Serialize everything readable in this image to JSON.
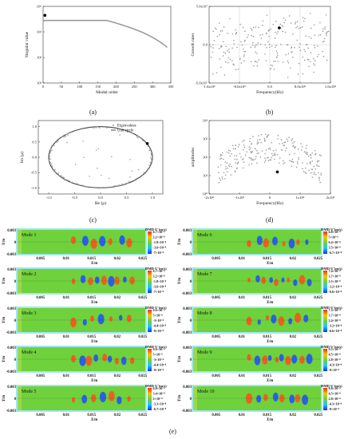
{
  "panel_labels": {
    "a": "(a)",
    "b": "(b)",
    "c": "(c)",
    "d": "(d)",
    "e": "(e)"
  },
  "chart_data": [
    {
      "id": "a",
      "type": "scatter",
      "xlabel": "Modal order",
      "ylabel": "Singular value",
      "x_ticks": [
        "0",
        "50",
        "100",
        "150",
        "200",
        "250",
        "300",
        "350"
      ],
      "y_ticks": [
        "10⁵",
        "10⁴",
        "10³",
        "10²"
      ],
      "x_range": [
        0,
        350
      ],
      "log_y": true,
      "y_range_exp": [
        2,
        5
      ],
      "highlight": {
        "x": 5,
        "y_exp": 4.65
      }
    },
    {
      "id": "b",
      "type": "scatter",
      "xlabel": "Frequency(Hz)",
      "ylabel": "Growth rates",
      "x_ticks": [
        "-1.6x10⁶",
        "-8.0x10⁵",
        "0.0",
        "8.0x10⁵",
        "1.6x10⁶"
      ],
      "y_ticks": [
        "5.0x10⁷",
        "0.0",
        "-5.0x10⁷"
      ],
      "x_range": [
        -1600000,
        1600000
      ],
      "y_range": [
        -50000000,
        50000000
      ],
      "highlight": {
        "x": 250000,
        "y": 22000000
      }
    },
    {
      "id": "c",
      "type": "scatter",
      "xlabel": "Re (μ)",
      "ylabel": "Im (μ)",
      "x_ticks": [
        "-1.0",
        "-0.5",
        "0.0",
        "0.5",
        "1.0"
      ],
      "y_ticks": [
        "1.0",
        "0.5",
        "0.0",
        "-0.5",
        "-1.0"
      ],
      "x_range": [
        -1.2,
        1.2
      ],
      "y_range": [
        -1.2,
        1.2
      ],
      "legend": [
        "Eigenvalues",
        "Unit circle"
      ],
      "legend_position": "top-right",
      "highlight": {
        "x": 0.9,
        "y": 0.45
      }
    },
    {
      "id": "d",
      "type": "scatter",
      "xlabel": "Frequency(Hz)",
      "ylabel": "amplitudes",
      "x_ticks": [
        "-2x10⁶",
        "-1x10⁶",
        "0",
        "1x10⁶",
        "2x10⁶"
      ],
      "y_ticks": [
        "10⁴",
        "10³",
        "10²",
        "10¹",
        "10⁰"
      ],
      "x_range": [
        -2000000,
        2000000
      ],
      "log_y": true,
      "y_range_exp": [
        0,
        4
      ],
      "highlight": {
        "x": 250000,
        "y_exp": 1.2
      }
    }
  ],
  "modes": {
    "x_axis_label": "X/m",
    "y_axis_label": "Y/m",
    "x_ticks": [
      "0.005",
      "0.01",
      "0.015",
      "0.02",
      "0.025"
    ],
    "y_ticks": [
      "0.003",
      "0",
      "-0.003"
    ],
    "colorbar_title": "DMD U'(m/s)",
    "colors": {
      "background": "#6fd13c",
      "positive": "#ff4d1a",
      "negative": "#1f4dff",
      "frame": "#9fe6f0"
    },
    "items": [
      {
        "label": "Mode 1",
        "colorbar": [
          "6.7×10⁻⁸",
          "2.2×10⁻⁸",
          "-1.8×10⁻⁸",
          "-3.6×10⁻⁸",
          "-7×10⁻⁸"
        ]
      },
      {
        "label": "Mode 6",
        "colorbar": [
          "6.8×10⁻⁸",
          "5×10⁻⁸",
          "6.4×10⁻⁸",
          "3.5×10⁻⁸",
          "-6.7×10⁻⁸"
        ]
      },
      {
        "label": "Mode 2",
        "colorbar": [
          "6.7×10⁻⁸",
          "3.2×10⁻⁸",
          "-1.8×10⁻⁸",
          "-3.6×10⁻⁸",
          "-7×10⁻⁸"
        ]
      },
      {
        "label": "Mode 7",
        "colorbar": [
          "7.4×10⁻⁸",
          "3.7×10⁻⁸",
          "2.5×10⁻⁸",
          "-3.2×10⁻⁸",
          "-6.6×10⁻⁸"
        ]
      },
      {
        "label": "Mode 3",
        "colorbar": [
          "9.6×10⁻⁸",
          "5×10⁻⁸",
          "-3×10⁻⁸",
          "-4.4×10⁻⁸",
          "-9×10⁻⁸"
        ]
      },
      {
        "label": "Mode 8",
        "colorbar": [
          "7.3×10⁻⁸",
          "3.7×10⁻⁸",
          "2.4×10⁻⁸",
          "-3.2×10⁻⁸",
          "-6.6×10⁻⁸"
        ]
      },
      {
        "label": "Mode 4",
        "colorbar": [
          "9.6×10⁻⁸",
          "5×10⁻⁸",
          "-3×10⁻⁸",
          "-4.4×10⁻⁸",
          "-9×10⁻⁸"
        ]
      },
      {
        "label": "Mode 9",
        "colorbar": [
          "9.5×10⁻⁸",
          "4.5×10⁻⁸",
          "2.8×10⁻⁸",
          "-4.3×10⁻⁸",
          "-9×10⁻⁸"
        ]
      },
      {
        "label": "Mode 5",
        "colorbar": [
          "6.8×10⁻⁸",
          "3.4×10⁻⁸",
          "2×10⁻⁸",
          "-3.3×10⁻⁸",
          "-6.7×10⁻⁸"
        ]
      },
      {
        "label": "Mode 10",
        "colorbar": [
          "9.8×10⁻⁸",
          "4.5×10⁻⁸",
          "2.8×10⁻⁸",
          "-4.3×10⁻⁸",
          "-9×10⁻⁸"
        ]
      }
    ]
  }
}
